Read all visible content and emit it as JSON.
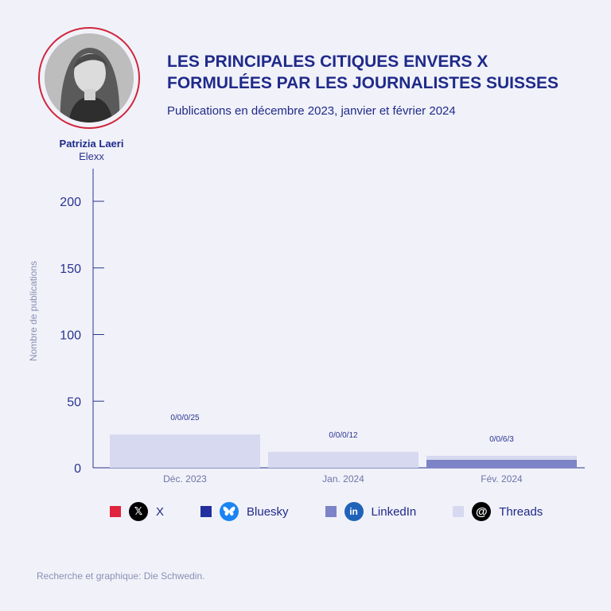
{
  "header": {
    "title_line1": "LES PRINCIPALES CITIQUES ENVERS X",
    "title_line2": "FORMULÉES PAR LES JOURNALISTES SUISSES",
    "subtitle": "Publications en décembre 2023, janvier et février 2024"
  },
  "person": {
    "name": "Patrizia Laeri",
    "org": "Elexx"
  },
  "footer": {
    "source": "Recherche et graphique: Die Schwedin."
  },
  "colors": {
    "x": "#e0243d",
    "bluesky": "#232f9e",
    "linkedin": "#7c83c7",
    "threads": "#d6d9ef",
    "text": "#1f2a8a",
    "axis": "#2a3290"
  },
  "chart_data": {
    "type": "bar",
    "stacked": true,
    "categories": [
      "Déc. 2023",
      "Jan. 2024",
      "Fév. 2024"
    ],
    "series": [
      {
        "name": "X",
        "values": [
          0,
          0,
          0
        ],
        "color": "#e0243d",
        "icon": "x-logo-icon"
      },
      {
        "name": "Bluesky",
        "values": [
          0,
          0,
          0
        ],
        "color": "#232f9e",
        "icon": "bluesky-logo-icon"
      },
      {
        "name": "LinkedIn",
        "values": [
          0,
          0,
          6
        ],
        "color": "#7c83c7",
        "icon": "linkedin-logo-icon"
      },
      {
        "name": "Threads",
        "values": [
          25,
          12,
          3
        ],
        "color": "#d6d9ef",
        "icon": "threads-logo-icon"
      }
    ],
    "data_labels": [
      "0/0/0/25",
      "0/0/0/12",
      "0/0/6/3"
    ],
    "ylabel": "Nombre de publications",
    "xlabel": "",
    "ylim": [
      0,
      200
    ],
    "yticks": [
      0,
      50,
      100,
      150,
      200
    ],
    "grid": false,
    "legend_position": "bottom"
  }
}
